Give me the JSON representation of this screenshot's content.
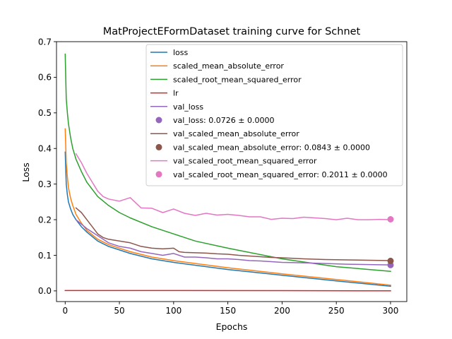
{
  "chart_data": {
    "type": "line",
    "title": "MatProjectEFormDataset training curve for Schnet",
    "xlabel": "Epochs",
    "ylabel": "Loss",
    "xlim": [
      -8,
      315
    ],
    "ylim": [
      -0.03,
      0.7
    ],
    "xticks": [
      0,
      50,
      100,
      150,
      200,
      250,
      300
    ],
    "yticks": [
      0.0,
      0.1,
      0.2,
      0.3,
      0.4,
      0.5,
      0.6,
      0.7
    ],
    "xtick_labels": [
      "0",
      "50",
      "100",
      "150",
      "200",
      "250",
      "300"
    ],
    "ytick_labels": [
      "0.0",
      "0.1",
      "0.2",
      "0.3",
      "0.4",
      "0.5",
      "0.6",
      "0.7"
    ],
    "grid": false,
    "legend_position": "top-right",
    "series": [
      {
        "name": "loss",
        "kind": "line",
        "color": "#1f77b4",
        "x": [
          0,
          1,
          2,
          3,
          5,
          7,
          10,
          15,
          20,
          30,
          40,
          50,
          60,
          80,
          100,
          150,
          200,
          250,
          300
        ],
        "y": [
          0.39,
          0.3,
          0.27,
          0.25,
          0.23,
          0.215,
          0.2,
          0.18,
          0.165,
          0.14,
          0.125,
          0.115,
          0.105,
          0.09,
          0.08,
          0.06,
          0.044,
          0.028,
          0.013
        ]
      },
      {
        "name": "scaled_mean_absolute_error",
        "kind": "line",
        "color": "#ff7f0e",
        "x": [
          0,
          1,
          2,
          3,
          5,
          7,
          10,
          15,
          20,
          30,
          40,
          50,
          60,
          80,
          100,
          150,
          200,
          250,
          300
        ],
        "y": [
          0.455,
          0.36,
          0.32,
          0.29,
          0.26,
          0.24,
          0.215,
          0.19,
          0.17,
          0.145,
          0.13,
          0.12,
          0.11,
          0.095,
          0.085,
          0.065,
          0.048,
          0.032,
          0.016
        ]
      },
      {
        "name": "scaled_root_mean_squared_error",
        "kind": "line",
        "color": "#2ca02c",
        "x": [
          0,
          1,
          2,
          3,
          5,
          7,
          10,
          15,
          20,
          30,
          40,
          50,
          60,
          80,
          100,
          120,
          150,
          200,
          250,
          300
        ],
        "y": [
          0.665,
          0.54,
          0.5,
          0.47,
          0.43,
          0.4,
          0.37,
          0.335,
          0.305,
          0.265,
          0.24,
          0.22,
          0.205,
          0.18,
          0.16,
          0.14,
          0.12,
          0.09,
          0.068,
          0.055
        ]
      },
      {
        "name": "lr",
        "kind": "line",
        "color": "#d62728",
        "x": [
          0,
          100,
          200,
          300
        ],
        "y": [
          0.001,
          0.001,
          0.0007,
          0.0002
        ]
      },
      {
        "name": "val_loss",
        "kind": "line",
        "color": "#9467bd",
        "x": [
          10,
          20,
          30,
          40,
          50,
          60,
          70,
          80,
          90,
          100,
          110,
          120,
          130,
          140,
          150,
          160,
          170,
          180,
          190,
          200,
          220,
          240,
          260,
          280,
          300
        ],
        "y": [
          0.2,
          0.175,
          0.155,
          0.135,
          0.125,
          0.12,
          0.11,
          0.105,
          0.1,
          0.105,
          0.095,
          0.095,
          0.093,
          0.09,
          0.09,
          0.088,
          0.085,
          0.084,
          0.082,
          0.08,
          0.079,
          0.077,
          0.075,
          0.074,
          0.073
        ]
      },
      {
        "name": "val_loss: 0.0726 ± 0.0000",
        "kind": "point",
        "color": "#9467bd",
        "x": [
          300
        ],
        "y": [
          0.0726
        ]
      },
      {
        "name": "val_scaled_mean_absolute_error",
        "kind": "line",
        "color": "#8c564b",
        "x": [
          10,
          15,
          20,
          25,
          30,
          35,
          40,
          50,
          60,
          70,
          80,
          90,
          100,
          105,
          110,
          120,
          130,
          140,
          150,
          160,
          170,
          180,
          190,
          200,
          220,
          240,
          260,
          280,
          300
        ],
        "y": [
          0.233,
          0.22,
          0.2,
          0.18,
          0.16,
          0.15,
          0.145,
          0.14,
          0.135,
          0.125,
          0.12,
          0.118,
          0.12,
          0.11,
          0.108,
          0.107,
          0.106,
          0.104,
          0.103,
          0.1,
          0.098,
          0.096,
          0.094,
          0.093,
          0.09,
          0.088,
          0.087,
          0.086,
          0.085
        ]
      },
      {
        "name": "val_scaled_mean_absolute_error: 0.0843 ± 0.0000",
        "kind": "point",
        "color": "#8c564b",
        "x": [
          300
        ],
        "y": [
          0.0843
        ]
      },
      {
        "name": "val_scaled_root_mean_squared_error",
        "kind": "line",
        "color": "#e377c2",
        "x": [
          10,
          15,
          20,
          25,
          30,
          35,
          40,
          50,
          60,
          70,
          80,
          90,
          100,
          110,
          120,
          130,
          140,
          150,
          160,
          170,
          180,
          190,
          200,
          210,
          220,
          230,
          240,
          250,
          260,
          270,
          280,
          290,
          300
        ],
        "y": [
          0.385,
          0.36,
          0.33,
          0.305,
          0.28,
          0.265,
          0.258,
          0.252,
          0.262,
          0.233,
          0.232,
          0.22,
          0.23,
          0.218,
          0.212,
          0.218,
          0.213,
          0.215,
          0.212,
          0.208,
          0.208,
          0.201,
          0.204,
          0.203,
          0.207,
          0.205,
          0.203,
          0.2,
          0.204,
          0.2,
          0.2,
          0.201,
          0.2
        ]
      },
      {
        "name": "val_scaled_root_mean_squared_error: 0.2011 ± 0.0000",
        "kind": "point",
        "color": "#e377c2",
        "x": [
          300
        ],
        "y": [
          0.2011
        ]
      }
    ]
  }
}
